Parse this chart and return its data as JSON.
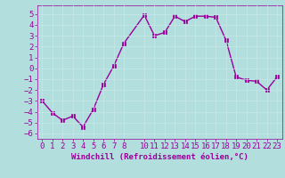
{
  "x": [
    0,
    1,
    2,
    3,
    4,
    5,
    6,
    7,
    8,
    10,
    11,
    12,
    13,
    14,
    15,
    16,
    17,
    18,
    19,
    20,
    21,
    22,
    23
  ],
  "y": [
    -3,
    -4.1,
    -4.8,
    -4.4,
    -5.4,
    -3.8,
    -1.5,
    0.2,
    2.3,
    4.9,
    3.0,
    3.3,
    4.8,
    4.3,
    4.8,
    4.8,
    4.7,
    2.6,
    -0.8,
    -1.1,
    -1.2,
    -2.0,
    -0.8
  ],
  "line_color": "#990099",
  "bg_color": "#b2dede",
  "grid_color": "#c8e8e8",
  "xlabel": "Windchill (Refroidissement éolien,°C)",
  "xlabel_color": "#990099",
  "tick_color": "#990099",
  "ylim": [
    -6.5,
    5.8
  ],
  "xlim": [
    -0.5,
    23.5
  ],
  "yticks": [
    -6,
    -5,
    -4,
    -3,
    -2,
    -1,
    0,
    1,
    2,
    3,
    4,
    5
  ],
  "xticks": [
    0,
    1,
    2,
    3,
    4,
    5,
    6,
    7,
    8,
    10,
    11,
    12,
    13,
    14,
    15,
    16,
    17,
    18,
    19,
    20,
    21,
    22,
    23
  ],
  "marker_size": 2.5,
  "line_width": 1.0,
  "font_size": 6.5
}
